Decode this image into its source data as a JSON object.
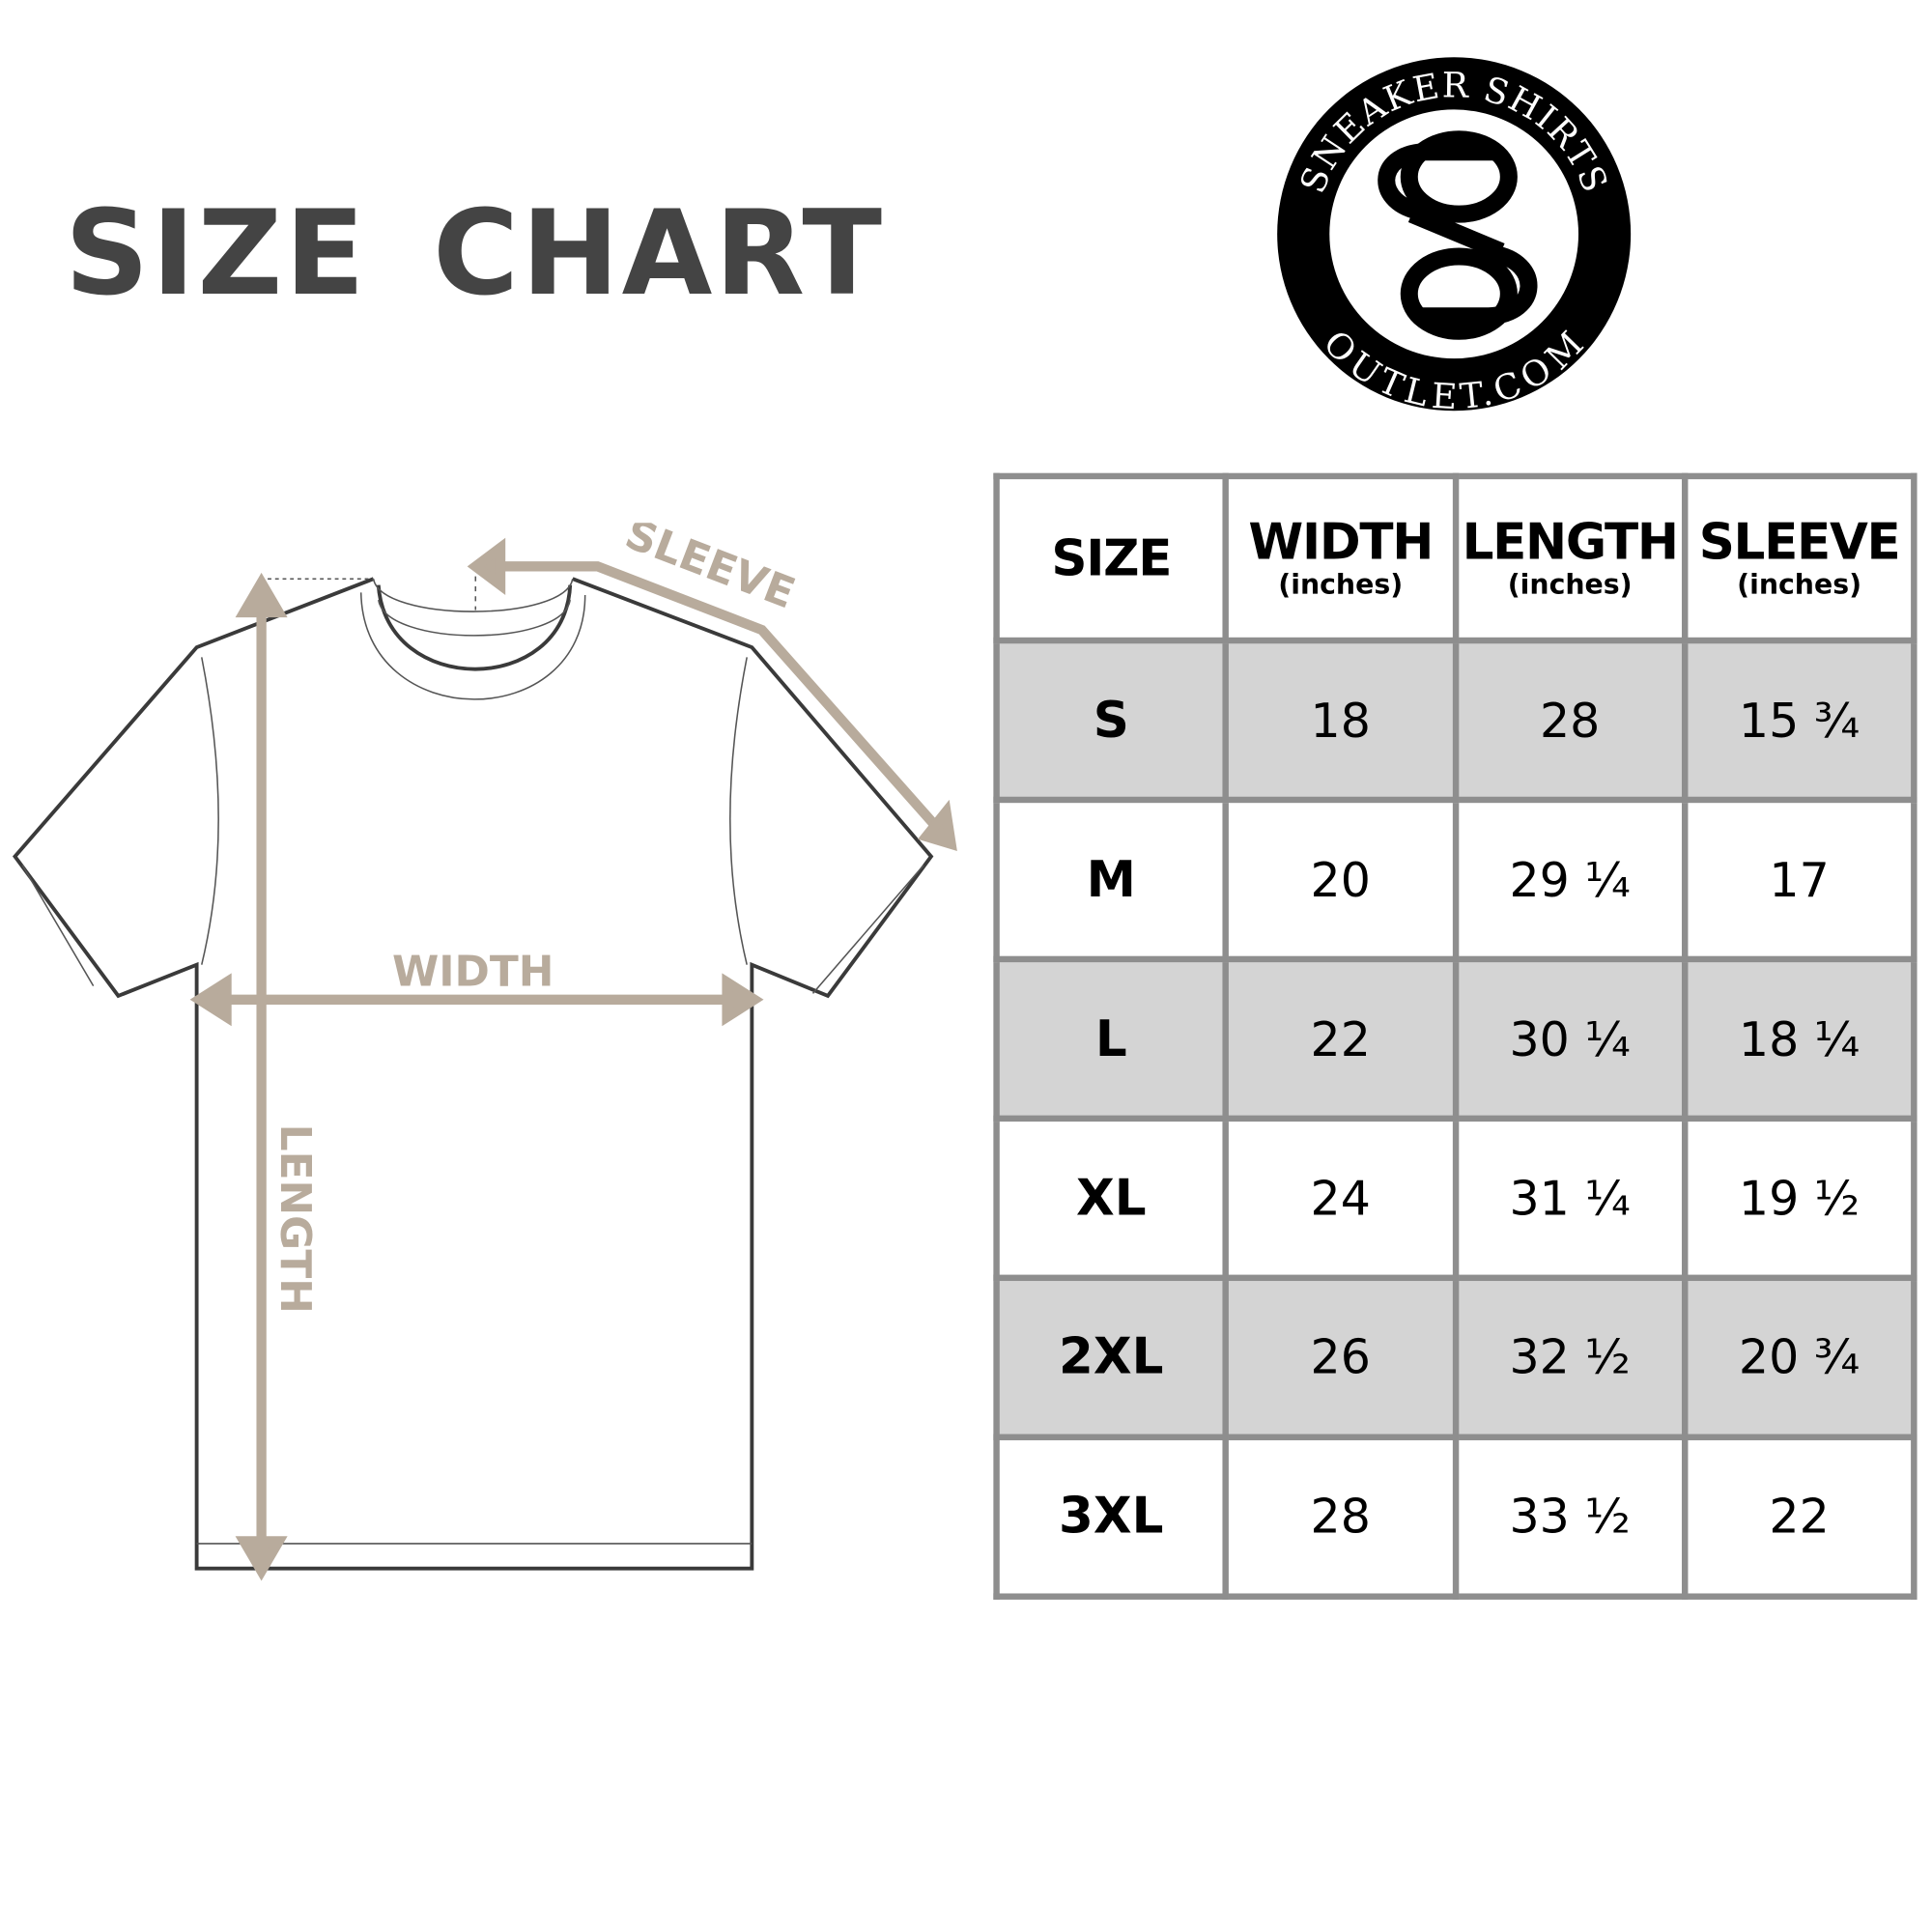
{
  "title": "SIZE CHART",
  "logo": {
    "top_text": "SNEAKER SHIRTS",
    "bottom_text": "OUTLET.COM",
    "monogram": "SO"
  },
  "diagram": {
    "sleeve_label": "SLEEVE",
    "width_label": "WIDTH",
    "length_label": "LENGTH",
    "arrow_color": "#b8ab9c"
  },
  "table": {
    "headers": [
      {
        "label": "SIZE",
        "unit": ""
      },
      {
        "label": "WIDTH",
        "unit": "(inches)"
      },
      {
        "label": "LENGTH",
        "unit": "(inches)"
      },
      {
        "label": "SLEEVE",
        "unit": "(inches)"
      }
    ],
    "rows": [
      [
        "S",
        "18",
        "28",
        "15 ¾"
      ],
      [
        "M",
        "20",
        "29 ¼",
        "17"
      ],
      [
        "L",
        "22",
        "30 ¼",
        "18 ¼"
      ],
      [
        "XL",
        "24",
        "31 ¼",
        "19 ½"
      ],
      [
        "2XL",
        "26",
        "32 ½",
        "20 ¾"
      ],
      [
        "3XL",
        "28",
        "33 ½",
        "22"
      ]
    ],
    "shade_color": "#d4d4d4",
    "border_color": "#8e8e8e"
  }
}
